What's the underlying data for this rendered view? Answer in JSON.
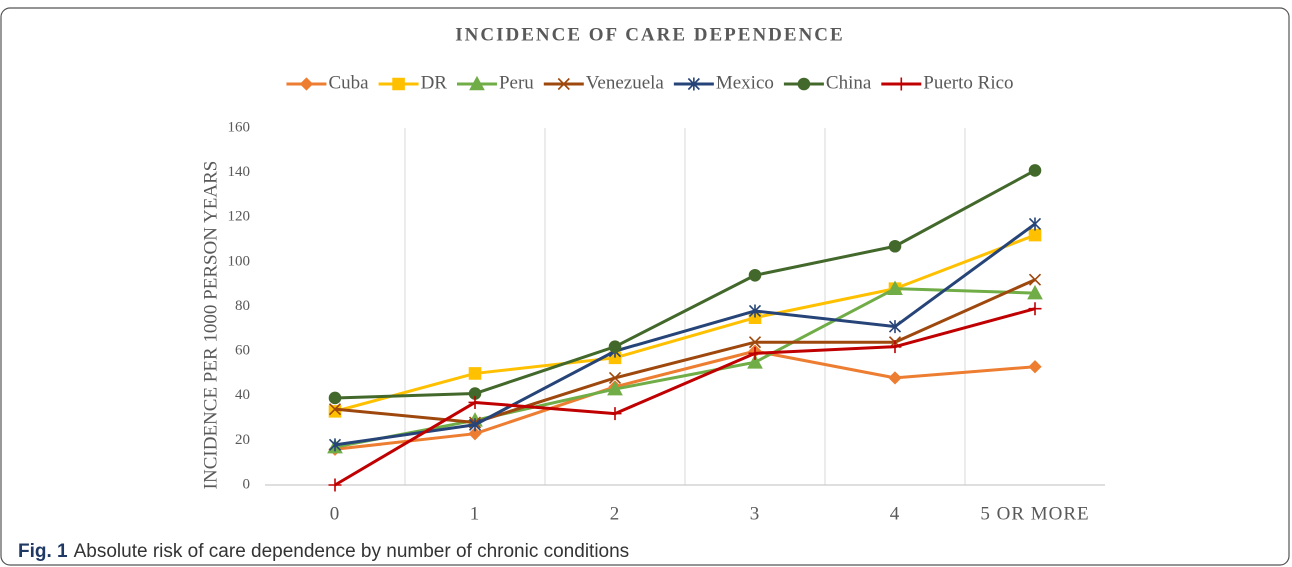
{
  "chart_data": {
    "type": "line",
    "title": "INCIDENCE OF CARE DEPENDENCE",
    "y_label": "INCIDENCE PER 1000 PERSON YEARS",
    "categories": [
      "0",
      "1",
      "2",
      "3",
      "4",
      "5 OR MORE"
    ],
    "series": [
      {
        "name": "Cuba",
        "color": "#ed7d31",
        "marker": "diamond",
        "values": [
          16,
          23,
          44,
          60,
          48,
          53
        ]
      },
      {
        "name": "DR",
        "color": "#ffc000",
        "marker": "square",
        "values": [
          33,
          50,
          57,
          75,
          88,
          112
        ]
      },
      {
        "name": "Peru",
        "color": "#70ad47",
        "marker": "triangle",
        "values": [
          17,
          29,
          43,
          55,
          88,
          86
        ]
      },
      {
        "name": "Venezuela",
        "color": "#9e480e",
        "marker": "x",
        "values": [
          34,
          28,
          48,
          64,
          64,
          92
        ]
      },
      {
        "name": "Mexico",
        "color": "#264478",
        "marker": "asterisk",
        "values": [
          18,
          27,
          60,
          78,
          71,
          117
        ]
      },
      {
        "name": "China",
        "color": "#43682b",
        "marker": "circle",
        "values": [
          39,
          41,
          62,
          94,
          107,
          141
        ]
      },
      {
        "name": "Puerto Rico",
        "color": "#c00000",
        "marker": "plus",
        "values": [
          0,
          37,
          32,
          59,
          62,
          79
        ]
      }
    ],
    "ylim": [
      0,
      160
    ],
    "yticks": [
      0,
      20,
      40,
      60,
      80,
      100,
      120,
      140,
      160
    ],
    "grid": true,
    "legend": "top"
  },
  "caption": {
    "label": "Fig. 1",
    "text": "Absolute risk of care dependence by number of chronic conditions"
  }
}
